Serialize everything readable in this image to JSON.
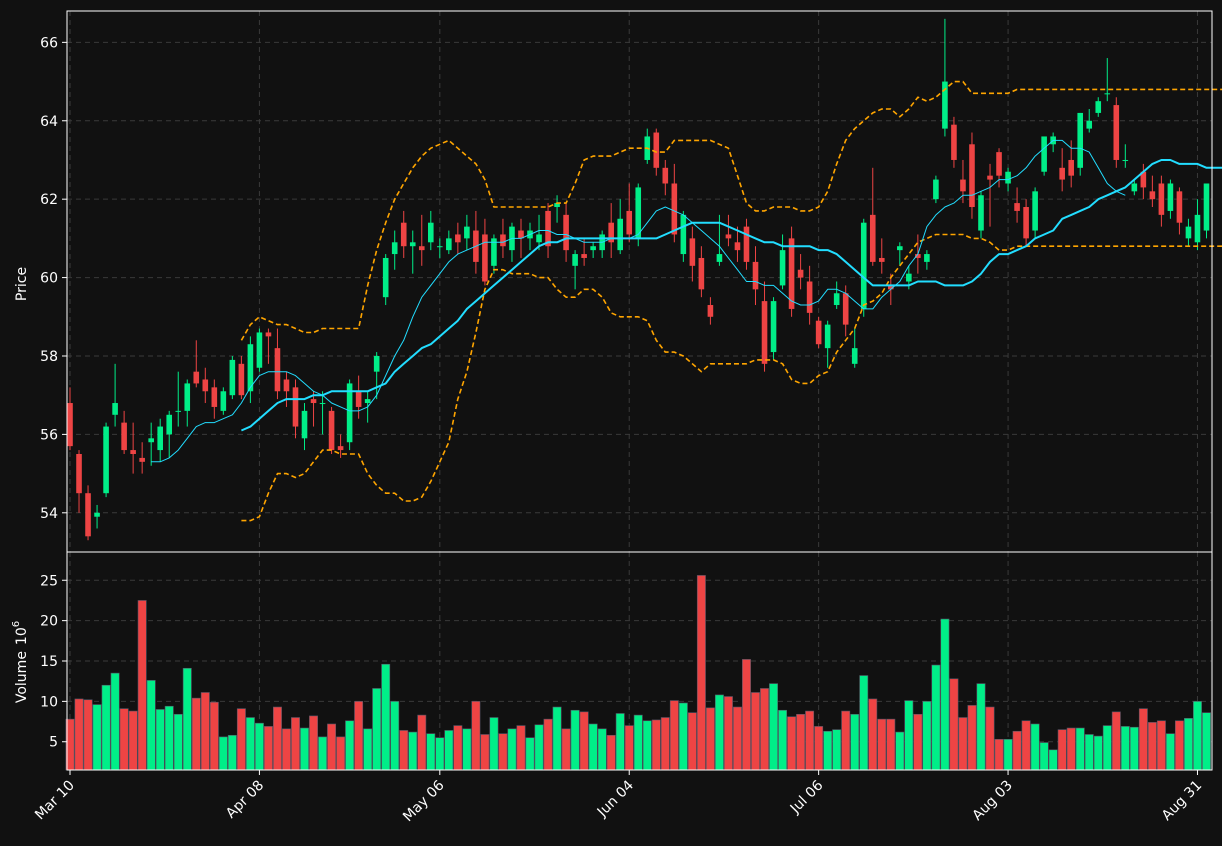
{
  "chart_data": {
    "type": "candlestick",
    "title": "",
    "colors": {
      "background": "#111111",
      "up": "#00ee88",
      "down": "#ee4444",
      "grid": "#3a3a3a",
      "axis": "#ffffff",
      "bands": "#ffa500",
      "ma_thick": "#22ddff",
      "ma_thin": "#22ddff"
    },
    "price_panel": {
      "ylabel": "Price",
      "ylim": [
        53.0,
        66.8
      ],
      "yticks": [
        "54",
        "56",
        "58",
        "60",
        "62",
        "64",
        "66"
      ],
      "grid": true
    },
    "volume_panel": {
      "ylabel": "Volume",
      "ylabel_exponent": "6",
      "ylim": [
        1.5,
        28.5
      ],
      "yticks": [
        "5",
        "10",
        "15",
        "20",
        "25"
      ],
      "grid": true
    },
    "x_ticks": [
      {
        "label": "Mar 10",
        "index": 0
      },
      {
        "label": "Apr 08",
        "index": 21
      },
      {
        "label": "May 06",
        "index": 41
      },
      {
        "label": "Jun 04",
        "index": 62
      },
      {
        "label": "Jul 06",
        "index": 83
      },
      {
        "label": "Aug 03",
        "index": 104
      },
      {
        "label": "Aug 31",
        "index": 125
      }
    ],
    "legend": "none",
    "series": [
      {
        "kind": "ohlc"
      },
      {
        "kind": "moving-average-thick"
      },
      {
        "kind": "moving-average-thin"
      },
      {
        "kind": "upper-band"
      },
      {
        "kind": "lower-band"
      },
      {
        "kind": "volume"
      }
    ],
    "ohlc": [
      [
        56.8,
        57.2,
        55.7,
        55.6
      ],
      [
        55.5,
        55.6,
        54.5,
        54.0
      ],
      [
        54.5,
        54.7,
        53.4,
        53.3
      ],
      [
        53.9,
        54.2,
        54.0,
        53.6
      ],
      [
        54.5,
        56.3,
        56.2,
        54.4
      ],
      [
        56.5,
        57.8,
        56.8,
        56.2
      ],
      [
        56.3,
        56.6,
        55.6,
        55.5
      ],
      [
        55.6,
        56.3,
        55.5,
        55.0
      ],
      [
        55.4,
        55.8,
        55.3,
        55.0
      ],
      [
        55.8,
        56.3,
        55.9,
        55.2
      ],
      [
        55.6,
        56.4,
        56.2,
        55.3
      ],
      [
        56.0,
        56.6,
        56.5,
        55.4
      ],
      [
        56.6,
        57.6,
        56.6,
        56.2
      ],
      [
        56.6,
        57.4,
        57.3,
        56.2
      ],
      [
        57.6,
        58.4,
        57.3,
        57.2
      ],
      [
        57.4,
        57.7,
        57.1,
        56.8
      ],
      [
        57.2,
        57.4,
        56.7,
        56.4
      ],
      [
        56.6,
        57.2,
        57.1,
        56.5
      ],
      [
        57.0,
        58.0,
        57.9,
        56.9
      ],
      [
        57.8,
        58.0,
        57.0,
        56.9
      ],
      [
        57.1,
        58.5,
        58.3,
        56.8
      ],
      [
        57.7,
        58.7,
        58.6,
        57.6
      ],
      [
        58.6,
        58.7,
        58.5,
        57.8
      ],
      [
        58.2,
        58.7,
        57.1,
        56.9
      ],
      [
        57.4,
        57.6,
        57.1,
        56.7
      ],
      [
        57.2,
        57.4,
        56.2,
        55.9
      ],
      [
        55.9,
        56.8,
        56.6,
        55.6
      ],
      [
        56.9,
        57.1,
        56.8,
        56.2
      ],
      [
        56.8,
        57.1,
        56.8,
        56.0
      ],
      [
        56.6,
        56.7,
        55.6,
        55.5
      ],
      [
        55.7,
        56.0,
        55.6,
        55.4
      ],
      [
        55.8,
        57.4,
        57.3,
        55.6
      ],
      [
        57.1,
        57.5,
        56.7,
        56.4
      ],
      [
        56.8,
        57.1,
        56.9,
        56.3
      ],
      [
        57.6,
        58.1,
        58.0,
        56.9
      ],
      [
        59.5,
        60.6,
        60.5,
        59.3
      ],
      [
        60.6,
        61.2,
        60.9,
        60.2
      ],
      [
        61.4,
        61.7,
        60.8,
        60.5
      ],
      [
        60.8,
        61.2,
        60.9,
        60.1
      ],
      [
        60.8,
        61.6,
        60.7,
        60.3
      ],
      [
        60.9,
        61.7,
        61.4,
        60.7
      ],
      [
        60.8,
        61.0,
        60.8,
        60.5
      ],
      [
        60.7,
        61.2,
        61.0,
        60.6
      ],
      [
        61.1,
        61.4,
        60.9,
        60.6
      ],
      [
        61.0,
        61.6,
        61.3,
        60.7
      ],
      [
        61.2,
        61.7,
        60.4,
        60.1
      ],
      [
        61.1,
        61.5,
        59.9,
        59.8
      ],
      [
        60.3,
        61.1,
        61.0,
        60.1
      ],
      [
        61.1,
        61.5,
        60.8,
        60.5
      ],
      [
        60.7,
        61.4,
        61.3,
        60.4
      ],
      [
        61.2,
        61.5,
        61.0,
        60.5
      ],
      [
        61.0,
        61.4,
        61.2,
        60.7
      ],
      [
        60.9,
        61.6,
        61.1,
        60.7
      ],
      [
        61.7,
        61.9,
        60.8,
        60.5
      ],
      [
        61.8,
        62.1,
        61.9,
        61.4
      ],
      [
        61.6,
        61.9,
        60.7,
        60.4
      ],
      [
        60.3,
        60.7,
        60.6,
        59.7
      ],
      [
        60.6,
        61.0,
        60.5,
        60.3
      ],
      [
        60.7,
        60.9,
        60.8,
        60.5
      ],
      [
        60.7,
        61.2,
        61.1,
        60.5
      ],
      [
        61.4,
        61.9,
        60.9,
        60.5
      ],
      [
        60.7,
        62.0,
        61.5,
        60.6
      ],
      [
        61.7,
        62.4,
        61.1,
        60.9
      ],
      [
        61.0,
        62.4,
        62.3,
        60.8
      ],
      [
        63.0,
        63.8,
        63.6,
        62.9
      ],
      [
        63.7,
        63.8,
        62.8,
        62.6
      ],
      [
        62.8,
        63.0,
        62.4,
        62.1
      ],
      [
        62.4,
        62.9,
        61.1,
        60.9
      ],
      [
        60.6,
        61.7,
        61.6,
        60.4
      ],
      [
        61.0,
        61.3,
        60.3,
        59.9
      ],
      [
        60.5,
        60.8,
        59.7,
        59.5
      ],
      [
        59.3,
        59.5,
        59.0,
        58.8
      ],
      [
        60.4,
        61.6,
        60.6,
        60.3
      ],
      [
        61.1,
        61.6,
        61.0,
        60.8
      ],
      [
        60.9,
        61.3,
        60.7,
        60.4
      ],
      [
        61.3,
        61.5,
        60.4,
        60.2
      ],
      [
        60.4,
        60.8,
        59.7,
        59.3
      ],
      [
        59.4,
        59.9,
        57.8,
        57.6
      ],
      [
        58.1,
        59.5,
        59.4,
        57.9
      ],
      [
        59.8,
        61.1,
        60.7,
        59.7
      ],
      [
        61.0,
        61.3,
        59.2,
        59.0
      ],
      [
        60.2,
        60.6,
        60.0,
        59.7
      ],
      [
        59.9,
        60.3,
        59.1,
        58.8
      ],
      [
        58.9,
        59.0,
        58.3,
        58.2
      ],
      [
        58.2,
        58.9,
        58.8,
        57.7
      ],
      [
        59.3,
        59.9,
        59.6,
        59.2
      ],
      [
        59.6,
        59.8,
        58.8,
        58.5
      ],
      [
        57.8,
        58.7,
        58.2,
        57.7
      ],
      [
        59.2,
        61.5,
        61.4,
        59.0
      ],
      [
        61.6,
        62.8,
        60.4,
        60.3
      ],
      [
        60.5,
        61.0,
        60.4,
        60.1
      ],
      [
        59.8,
        60.1,
        59.7,
        59.3
      ],
      [
        60.7,
        60.9,
        60.8,
        60.3
      ],
      [
        59.9,
        60.3,
        60.1,
        59.7
      ],
      [
        60.6,
        61.1,
        60.5,
        60.1
      ],
      [
        60.4,
        60.7,
        60.6,
        60.2
      ],
      [
        62.0,
        62.6,
        62.5,
        61.9
      ],
      [
        63.8,
        66.6,
        65.0,
        63.6
      ],
      [
        63.9,
        64.1,
        63.0,
        62.8
      ],
      [
        62.5,
        63.0,
        62.2,
        61.9
      ],
      [
        63.4,
        63.7,
        61.8,
        61.5
      ],
      [
        61.2,
        62.2,
        62.1,
        61.0
      ],
      [
        62.6,
        62.9,
        62.5,
        61.3
      ],
      [
        63.2,
        63.3,
        62.6,
        62.3
      ],
      [
        62.4,
        62.8,
        62.7,
        62.2
      ],
      [
        61.9,
        62.3,
        61.7,
        61.4
      ],
      [
        61.8,
        62.0,
        61.0,
        60.8
      ],
      [
        61.2,
        62.3,
        62.2,
        61.0
      ],
      [
        62.7,
        63.5,
        63.6,
        62.6
      ],
      [
        63.4,
        63.7,
        63.6,
        63.2
      ],
      [
        62.8,
        63.3,
        62.5,
        62.2
      ],
      [
        63.0,
        63.5,
        62.6,
        62.3
      ],
      [
        62.8,
        64.2,
        64.2,
        62.6
      ],
      [
        63.8,
        64.3,
        64.0,
        63.7
      ],
      [
        64.2,
        64.6,
        64.5,
        64.1
      ],
      [
        64.7,
        65.6,
        64.7,
        64.5
      ],
      [
        64.4,
        64.6,
        63.0,
        62.8
      ],
      [
        63.0,
        63.4,
        63.0,
        62.8
      ],
      [
        62.2,
        62.5,
        62.4,
        62.1
      ],
      [
        62.7,
        62.9,
        62.3,
        62.0
      ],
      [
        62.2,
        62.6,
        62.0,
        61.8
      ],
      [
        62.4,
        62.6,
        61.6,
        61.3
      ],
      [
        61.7,
        62.5,
        62.4,
        61.5
      ],
      [
        62.2,
        62.3,
        61.4,
        61.1
      ],
      [
        61.0,
        61.5,
        61.3,
        60.8
      ],
      [
        60.9,
        62.0,
        61.6,
        60.7
      ],
      [
        61.2,
        62.3,
        62.4,
        61.0
      ]
    ],
    "ma_thick": {
      "start": 19,
      "values": [
        56.1,
        56.2,
        56.4,
        56.6,
        56.8,
        56.9,
        56.9,
        56.9,
        57.0,
        57.0,
        57.1,
        57.1,
        57.1,
        57.1,
        57.1,
        57.2,
        57.3,
        57.6,
        57.8,
        58.0,
        58.2,
        58.3,
        58.5,
        58.7,
        58.9,
        59.2,
        59.4,
        59.6,
        59.8,
        60.0,
        60.2,
        60.4,
        60.6,
        60.8,
        60.9,
        60.9,
        61.0,
        61.0,
        61.0,
        61.0,
        61.0,
        61.0,
        61.0,
        61.0,
        61.0,
        61.0,
        61.0,
        61.1,
        61.2,
        61.3,
        61.4,
        61.4,
        61.4,
        61.4,
        61.3,
        61.2,
        61.1,
        61.0,
        60.9,
        60.9,
        60.8,
        60.8,
        60.8,
        60.8,
        60.7,
        60.7,
        60.6,
        60.4,
        60.2,
        60.0,
        59.8,
        59.8,
        59.8,
        59.8,
        59.8,
        59.9,
        59.9,
        59.9,
        59.8,
        59.8,
        59.8,
        59.9,
        60.1,
        60.4,
        60.6,
        60.6,
        60.7,
        60.8,
        61.0,
        61.1,
        61.2,
        61.5,
        61.6,
        61.7,
        61.8,
        62.0,
        62.1,
        62.2,
        62.3,
        62.5,
        62.7,
        62.9,
        63.0,
        63.0,
        62.9,
        62.9,
        62.9,
        62.8,
        62.8,
        62.8,
        62.8,
        62.8,
        62.8,
        62.8,
        62.8
      ]
    },
    "ma_thin": {
      "start": 9,
      "values": [
        55.3,
        55.3,
        55.4,
        55.6,
        55.9,
        56.2,
        56.3,
        56.3,
        56.4,
        56.5,
        56.8,
        57.2,
        57.5,
        57.6,
        57.6,
        57.6,
        57.5,
        57.3,
        57.1,
        57.0,
        56.8,
        56.7,
        56.6,
        56.6,
        56.7,
        57.0,
        57.5,
        58.0,
        58.4,
        59.0,
        59.5,
        59.8,
        60.1,
        60.4,
        60.6,
        60.7,
        60.8,
        60.9,
        60.9,
        60.9,
        61.0,
        61.0,
        61.1,
        61.2,
        61.2,
        61.1,
        61.1,
        61.0,
        60.9,
        60.9,
        60.9,
        61.0,
        61.0,
        61.0,
        61.1,
        61.4,
        61.7,
        61.8,
        61.7,
        61.6,
        61.4,
        61.2,
        61.0,
        60.8,
        60.5,
        60.2,
        59.9,
        59.9,
        59.8,
        59.8,
        59.6,
        59.4,
        59.3,
        59.3,
        59.4,
        59.7,
        59.7,
        59.6,
        59.4,
        59.2,
        59.2,
        59.5,
        59.7,
        59.9,
        60.3,
        60.6,
        61.3,
        61.6,
        61.8,
        61.9,
        62.1,
        62.1,
        62.2,
        62.3,
        62.5,
        62.5,
        62.6,
        62.8,
        63.1,
        63.3,
        63.5,
        63.5,
        63.3,
        63.3,
        63.2,
        62.8,
        62.4,
        62.2,
        62.1
      ]
    },
    "upper_band": {
      "start": 19,
      "values": [
        58.4,
        58.8,
        59.0,
        58.9,
        58.8,
        58.8,
        58.7,
        58.6,
        58.6,
        58.7,
        58.7,
        58.7,
        58.7,
        58.7,
        59.8,
        60.7,
        61.4,
        62.0,
        62.4,
        62.8,
        63.1,
        63.3,
        63.4,
        63.5,
        63.3,
        63.1,
        62.9,
        62.5,
        61.8,
        61.8,
        61.8,
        61.8,
        61.8,
        61.8,
        61.8,
        61.9,
        61.9,
        62.4,
        63.0,
        63.1,
        63.1,
        63.1,
        63.2,
        63.3,
        63.3,
        63.3,
        63.2,
        63.2,
        63.5,
        63.5,
        63.5,
        63.5,
        63.5,
        63.4,
        63.3,
        62.6,
        61.9,
        61.7,
        61.7,
        61.8,
        61.8,
        61.8,
        61.7,
        61.7,
        61.8,
        62.2,
        62.9,
        63.5,
        63.8,
        64.0,
        64.2,
        64.3,
        64.3,
        64.1,
        64.3,
        64.6,
        64.5,
        64.6,
        64.8,
        65.0,
        65.0,
        64.7,
        64.7,
        64.7,
        64.7,
        64.7,
        64.8,
        64.8,
        64.8,
        64.8,
        64.8,
        64.8,
        64.8,
        64.8,
        64.8,
        64.8,
        64.8,
        64.8,
        64.8,
        64.8,
        64.8,
        64.8,
        64.8,
        64.8,
        64.8,
        64.8,
        64.8,
        64.8,
        64.8,
        64.8,
        64.8,
        64.8,
        64.8,
        64.8,
        64.8
      ]
    },
    "lower_band": {
      "start": 19,
      "values": [
        53.8,
        53.8,
        53.9,
        54.5,
        55.0,
        55.0,
        54.9,
        55.0,
        55.3,
        55.6,
        55.6,
        55.5,
        55.5,
        55.5,
        55.0,
        54.7,
        54.5,
        54.5,
        54.3,
        54.3,
        54.4,
        54.8,
        55.3,
        55.8,
        56.9,
        57.6,
        58.6,
        59.7,
        60.2,
        60.2,
        60.1,
        60.1,
        60.1,
        60.0,
        60.0,
        59.7,
        59.5,
        59.5,
        59.7,
        59.7,
        59.5,
        59.1,
        59.0,
        59.0,
        59.0,
        58.9,
        58.4,
        58.1,
        58.1,
        58.0,
        57.8,
        57.6,
        57.8,
        57.8,
        57.8,
        57.8,
        57.8,
        57.9,
        57.9,
        57.9,
        57.8,
        57.4,
        57.3,
        57.3,
        57.5,
        57.6,
        58.1,
        58.4,
        58.7,
        59.3,
        59.4,
        59.6,
        60.0,
        60.3,
        60.6,
        60.9,
        61.0,
        61.1,
        61.1,
        61.1,
        61.1,
        61.0,
        61.0,
        60.9,
        60.7,
        60.7,
        60.8,
        60.8,
        60.8,
        60.8,
        60.8,
        60.8,
        60.8,
        60.8,
        60.8,
        60.8,
        60.8,
        60.8,
        60.8,
        60.8,
        60.8,
        60.8,
        60.8,
        60.8,
        60.8,
        60.8,
        60.8,
        60.8,
        60.8,
        60.8,
        60.8,
        60.8,
        60.8,
        60.8,
        60.8
      ]
    },
    "volume": [
      7.8,
      10.3,
      10.2,
      9.6,
      12.0,
      13.5,
      9.1,
      8.8,
      22.5,
      12.6,
      9.0,
      9.4,
      8.4,
      14.1,
      10.4,
      11.1,
      9.9,
      5.6,
      5.8,
      9.1,
      8.0,
      7.3,
      6.9,
      9.3,
      6.6,
      8.0,
      6.7,
      8.2,
      5.6,
      7.2,
      5.6,
      7.6,
      10.0,
      6.6,
      11.6,
      14.6,
      10.0,
      6.4,
      6.2,
      8.3,
      6.0,
      5.5,
      6.4,
      7.0,
      6.6,
      10.0,
      5.9,
      8.0,
      6.0,
      6.6,
      7.0,
      5.5,
      7.1,
      7.8,
      9.3,
      6.6,
      8.9,
      8.7,
      7.2,
      6.6,
      5.8,
      8.5,
      7.0,
      8.3,
      7.6,
      7.7,
      8.0,
      10.1,
      9.8,
      8.6,
      25.6,
      9.2,
      10.8,
      10.6,
      9.3,
      15.2,
      11.1,
      11.6,
      12.2,
      8.9,
      8.1,
      8.4,
      8.8,
      6.9,
      6.3,
      6.5,
      8.8,
      8.4,
      13.2,
      10.3,
      7.8,
      7.8,
      6.2,
      10.1,
      8.4,
      10.0,
      14.5,
      20.2,
      12.8,
      8.0,
      9.5,
      12.2,
      9.3,
      5.3,
      5.3,
      6.3,
      7.6,
      7.2,
      4.9,
      4.0,
      6.5,
      6.7,
      6.7,
      5.9,
      5.7,
      7.0,
      8.7,
      6.9,
      6.8,
      9.1,
      7.4,
      7.6,
      6.0,
      7.6,
      7.9,
      10.0,
      8.6
    ]
  }
}
